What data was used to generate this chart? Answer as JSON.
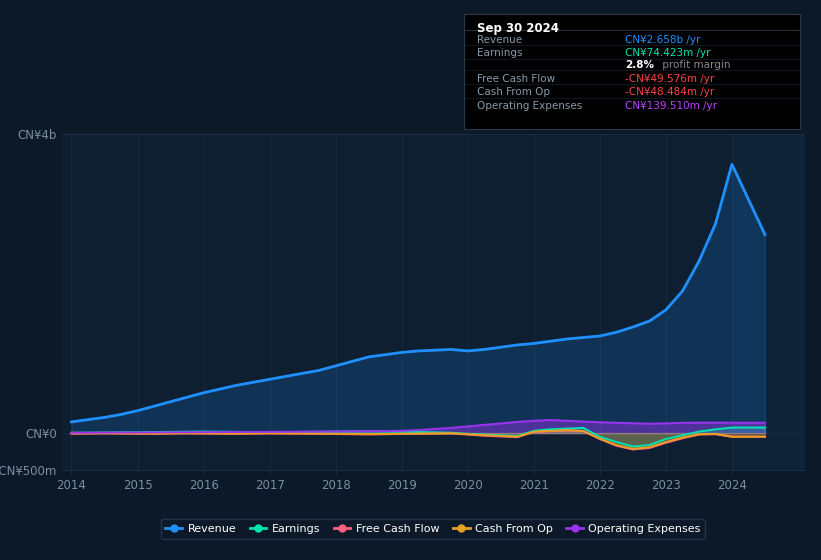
{
  "bg_color": "#0b1929",
  "plot_bg_color": "#0d1f30",
  "grid_color": "#1a2e42",
  "x_years": [
    2014.0,
    2014.25,
    2014.5,
    2014.75,
    2015.0,
    2015.25,
    2015.5,
    2015.75,
    2016.0,
    2016.25,
    2016.5,
    2016.75,
    2017.0,
    2017.25,
    2017.5,
    2017.75,
    2018.0,
    2018.25,
    2018.5,
    2018.75,
    2019.0,
    2019.25,
    2019.5,
    2019.75,
    2020.0,
    2020.25,
    2020.5,
    2020.75,
    2021.0,
    2021.25,
    2021.5,
    2021.75,
    2022.0,
    2022.25,
    2022.5,
    2022.75,
    2023.0,
    2023.25,
    2023.5,
    2023.75,
    2024.0,
    2024.5
  ],
  "revenue": [
    150,
    180,
    210,
    250,
    300,
    360,
    420,
    480,
    540,
    590,
    640,
    680,
    720,
    760,
    800,
    840,
    900,
    960,
    1020,
    1050,
    1080,
    1100,
    1110,
    1120,
    1100,
    1120,
    1150,
    1180,
    1200,
    1230,
    1260,
    1280,
    1300,
    1350,
    1420,
    1500,
    1650,
    1900,
    2300,
    2800,
    3600,
    2658
  ],
  "earnings": [
    5,
    6,
    8,
    10,
    12,
    14,
    16,
    18,
    20,
    18,
    16,
    14,
    12,
    14,
    16,
    18,
    20,
    22,
    24,
    22,
    18,
    14,
    10,
    5,
    -10,
    -20,
    -30,
    -40,
    30,
    50,
    60,
    70,
    -50,
    -120,
    -180,
    -160,
    -80,
    -30,
    20,
    50,
    74,
    74
  ],
  "free_cash_flow": [
    -8,
    -6,
    -4,
    -6,
    -8,
    -10,
    -6,
    -4,
    -6,
    -8,
    -10,
    -6,
    -4,
    -6,
    -8,
    -10,
    -12,
    -15,
    -18,
    -15,
    -12,
    -10,
    -8,
    -6,
    -20,
    -35,
    -45,
    -55,
    15,
    25,
    35,
    25,
    -80,
    -170,
    -220,
    -200,
    -130,
    -70,
    -20,
    -15,
    -50,
    -50
  ],
  "cash_from_op": [
    -3,
    -2,
    -1,
    -3,
    -5,
    -7,
    -3,
    -1,
    -3,
    -5,
    -7,
    -4,
    -1,
    -3,
    -5,
    -7,
    -9,
    -11,
    -13,
    -11,
    -9,
    -7,
    -5,
    -3,
    -15,
    -28,
    -38,
    -48,
    18,
    28,
    38,
    28,
    -75,
    -160,
    -210,
    -190,
    -120,
    -60,
    -15,
    -10,
    -48,
    -48
  ],
  "op_expenses": [
    4,
    5,
    6,
    7,
    8,
    9,
    10,
    11,
    12,
    13,
    14,
    15,
    16,
    17,
    18,
    19,
    21,
    23,
    25,
    27,
    30,
    40,
    55,
    70,
    90,
    110,
    130,
    150,
    165,
    175,
    165,
    155,
    145,
    138,
    132,
    125,
    130,
    138,
    139,
    139,
    139,
    139
  ],
  "ylim": [
    -500,
    4000
  ],
  "ytick_positions": [
    -500,
    0,
    4000
  ],
  "ytick_labels": [
    "-CN¥500m",
    "CN¥0",
    "CN¥4b"
  ],
  "xticks": [
    2014,
    2015,
    2016,
    2017,
    2018,
    2019,
    2020,
    2021,
    2022,
    2023,
    2024
  ],
  "revenue_color": "#1e90ff",
  "earnings_color": "#00e5b0",
  "fcf_color": "#ff6080",
  "cashfromop_color": "#e8a020",
  "opex_color": "#9933ee",
  "highlight_x_start": 2024.0,
  "highlight_color": "#1a3a5c",
  "info_box": {
    "date": "Sep 30 2024",
    "rows": [
      {
        "label": "Revenue",
        "value": "CN¥2.658b /yr",
        "value_color": "#1e90ff"
      },
      {
        "label": "Earnings",
        "value": "CN¥74.423m /yr",
        "value_color": "#00e5b0"
      },
      {
        "label": "",
        "value": "2.8% profit margin",
        "value_color": "#888888",
        "bold": "2.8%"
      },
      {
        "label": "Free Cash Flow",
        "value": "-CN¥49.576m /yr",
        "value_color": "#ff4444"
      },
      {
        "label": "Cash From Op",
        "value": "-CN¥48.484m /yr",
        "value_color": "#ff4444"
      },
      {
        "label": "Operating Expenses",
        "value": "CN¥139.510m /yr",
        "value_color": "#bb44ff"
      }
    ]
  },
  "legend": [
    {
      "label": "Revenue",
      "color": "#1e90ff"
    },
    {
      "label": "Earnings",
      "color": "#00e5b0"
    },
    {
      "label": "Free Cash Flow",
      "color": "#ff6080"
    },
    {
      "label": "Cash From Op",
      "color": "#e8a020"
    },
    {
      "label": "Operating Expenses",
      "color": "#9933ee"
    }
  ]
}
